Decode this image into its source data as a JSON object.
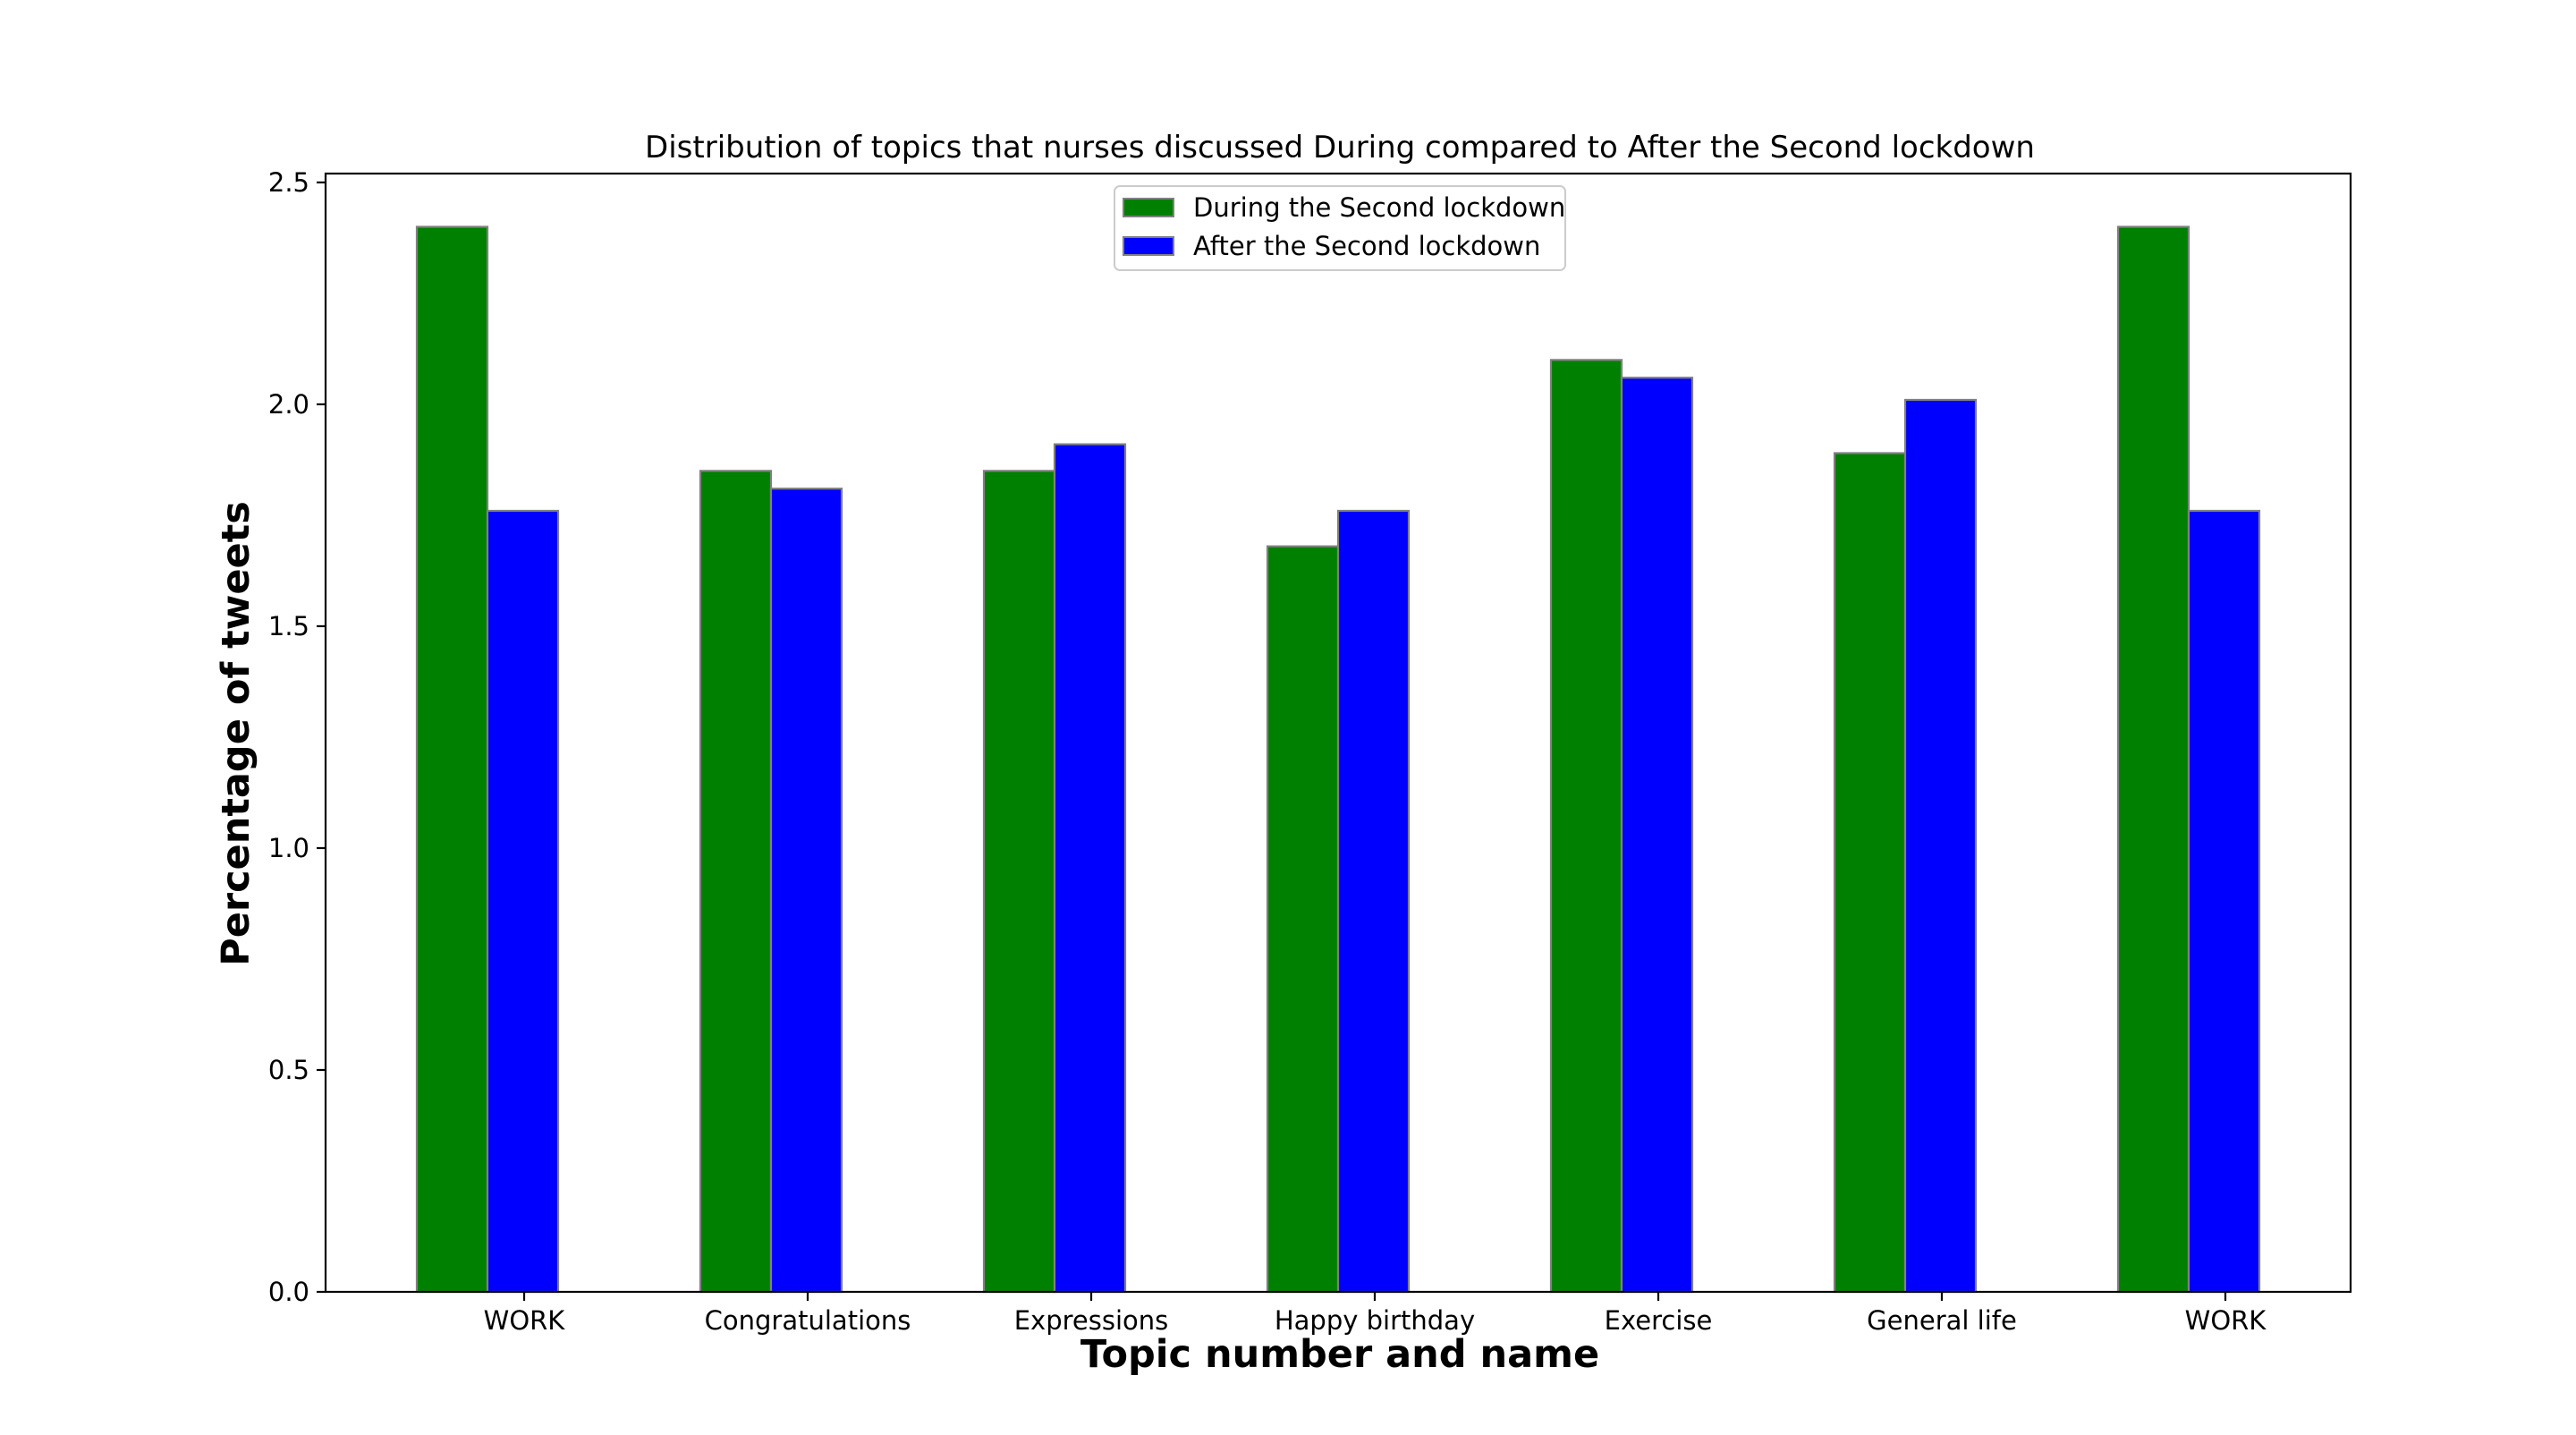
{
  "chart_data": {
    "type": "bar",
    "title": "Distribution of topics that nurses discussed During compared to After the Second lockdown",
    "xlabel": "Topic number and name",
    "ylabel": "Percentage of tweets",
    "categories": [
      "WORK",
      "Congratulations",
      "Expressions",
      "Happy birthday",
      "Exercise",
      "General life",
      "WORK"
    ],
    "series": [
      {
        "name": "During the Second lockdown",
        "color": "#008000",
        "values": [
          2.4,
          1.85,
          1.85,
          1.68,
          2.1,
          1.89,
          2.4
        ]
      },
      {
        "name": "After the Second lockdown",
        "color": "#0000ff",
        "values": [
          1.76,
          1.81,
          1.91,
          1.76,
          2.06,
          2.01,
          1.76
        ]
      }
    ],
    "ylim": [
      0,
      2.52
    ],
    "yticks": [
      "0.0",
      "0.5",
      "1.0",
      "1.5",
      "2.0",
      "2.5"
    ],
    "ytick_values": [
      0,
      0.5,
      1.0,
      1.5,
      2.0,
      2.5
    ],
    "bar_edge_color": "#808080",
    "grid": false,
    "legend_position": "upper center"
  }
}
